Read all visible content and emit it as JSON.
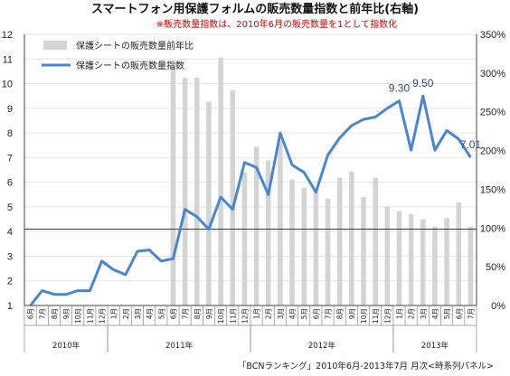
{
  "chart_data": {
    "type": "bar+line",
    "title": "スマートフォン用保護フォルムの販売数量指数と前年比(右軸)",
    "subtitle": "※販売数量指数は、2010年6月の販売数量を1として指数化",
    "source": "「BCNランキング」2010年6月-2013年7月 月次<時系列パネル>",
    "y_left": {
      "min": 1,
      "max": 12,
      "ticks": [
        "1",
        "2",
        "3",
        "4",
        "5",
        "6",
        "7",
        "8",
        "9",
        "10",
        "11",
        "12"
      ]
    },
    "y_right": {
      "min": 0,
      "max": 350,
      "ticks": [
        "0%",
        "50%",
        "100%",
        "150%",
        "200%",
        "250%",
        "300%",
        "350%"
      ]
    },
    "reference_line": {
      "axis": "left",
      "value": 4.1,
      "color": "#c00000"
    },
    "months": [
      "6月",
      "7月",
      "8月",
      "9月",
      "10月",
      "11月",
      "12月",
      "1月",
      "2月",
      "3月",
      "4月",
      "5月",
      "6月",
      "7月",
      "8月",
      "9月",
      "10月",
      "11月",
      "12月",
      "1月",
      "2月",
      "3月",
      "4月",
      "5月",
      "6月",
      "7月",
      "8月",
      "9月",
      "10月",
      "11月",
      "12月",
      "1月",
      "2月",
      "3月",
      "4月",
      "5月",
      "6月",
      "7月"
    ],
    "years": [
      {
        "label": "2010年",
        "start": 0,
        "end": 6
      },
      {
        "label": "2011年",
        "start": 7,
        "end": 18
      },
      {
        "label": "2012年",
        "start": 19,
        "end": 30
      },
      {
        "label": "2013年",
        "start": 31,
        "end": 37
      }
    ],
    "series": [
      {
        "name": "保護シートの販売数量前年比",
        "axis": "right",
        "kind": "bar",
        "color": "#d4d4d4",
        "values": [
          null,
          null,
          null,
          null,
          null,
          null,
          null,
          null,
          null,
          null,
          null,
          null,
          309,
          294,
          294,
          263,
          320,
          278,
          172,
          205,
          187,
          212,
          163,
          152,
          150,
          138,
          165,
          173,
          140,
          165,
          128,
          122,
          118,
          111,
          102,
          113,
          133,
          102
        ]
      },
      {
        "name": "保護シートの販売数量指数",
        "axis": "left",
        "kind": "line",
        "color": "#4a86d0",
        "values": [
          1.0,
          1.6,
          1.45,
          1.45,
          1.6,
          1.6,
          2.8,
          2.45,
          2.25,
          3.2,
          3.25,
          2.8,
          2.9,
          4.9,
          4.6,
          4.1,
          5.4,
          4.9,
          6.8,
          6.6,
          5.5,
          8.0,
          6.7,
          6.4,
          5.6,
          7.1,
          7.8,
          8.3,
          8.55,
          8.65,
          9.0,
          9.3,
          7.3,
          9.5,
          7.3,
          8.1,
          7.75,
          7.01
        ]
      }
    ],
    "data_labels": [
      {
        "index": 31,
        "text": "9.30"
      },
      {
        "index": 33,
        "text": "9.50"
      },
      {
        "index": 37,
        "text": "7.01"
      }
    ]
  }
}
